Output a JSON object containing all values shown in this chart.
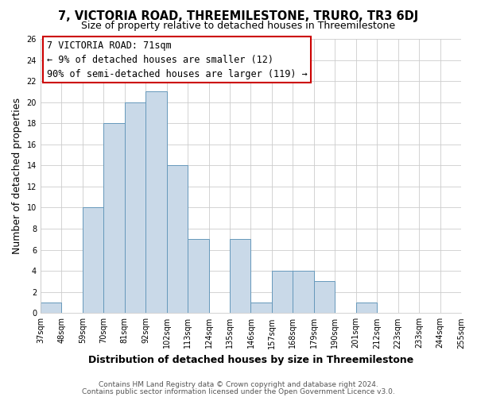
{
  "title": "7, VICTORIA ROAD, THREEMILESTONE, TRURO, TR3 6DJ",
  "subtitle": "Size of property relative to detached houses in Threemilestone",
  "xlabel": "Distribution of detached houses by size in Threemilestone",
  "ylabel": "Number of detached properties",
  "bin_labels": [
    "37sqm",
    "48sqm",
    "59sqm",
    "70sqm",
    "81sqm",
    "92sqm",
    "102sqm",
    "113sqm",
    "124sqm",
    "135sqm",
    "146sqm",
    "157sqm",
    "168sqm",
    "179sqm",
    "190sqm",
    "201sqm",
    "212sqm",
    "223sqm",
    "233sqm",
    "244sqm",
    "255sqm"
  ],
  "bar_values": [
    1,
    0,
    10,
    18,
    20,
    21,
    14,
    7,
    0,
    7,
    1,
    4,
    4,
    3,
    0,
    1,
    0,
    0,
    0,
    0
  ],
  "bar_color": "#c9d9e8",
  "bar_edge_color": "#6699bb",
  "ylim": [
    0,
    26
  ],
  "yticks": [
    0,
    2,
    4,
    6,
    8,
    10,
    12,
    14,
    16,
    18,
    20,
    22,
    24,
    26
  ],
  "annotation_box_title": "7 VICTORIA ROAD: 71sqm",
  "annotation_line1": "← 9% of detached houses are smaller (12)",
  "annotation_line2": "90% of semi-detached houses are larger (119) →",
  "annotation_box_color": "#ffffff",
  "annotation_box_edge": "#cc0000",
  "footer_line1": "Contains HM Land Registry data © Crown copyright and database right 2024.",
  "footer_line2": "Contains public sector information licensed under the Open Government Licence v3.0.",
  "background_color": "#ffffff",
  "grid_color": "#cccccc",
  "title_fontsize": 10.5,
  "subtitle_fontsize": 9,
  "axis_label_fontsize": 9,
  "tick_fontsize": 7,
  "footer_fontsize": 6.5,
  "ann_fontsize": 8.5,
  "num_bins": 20
}
